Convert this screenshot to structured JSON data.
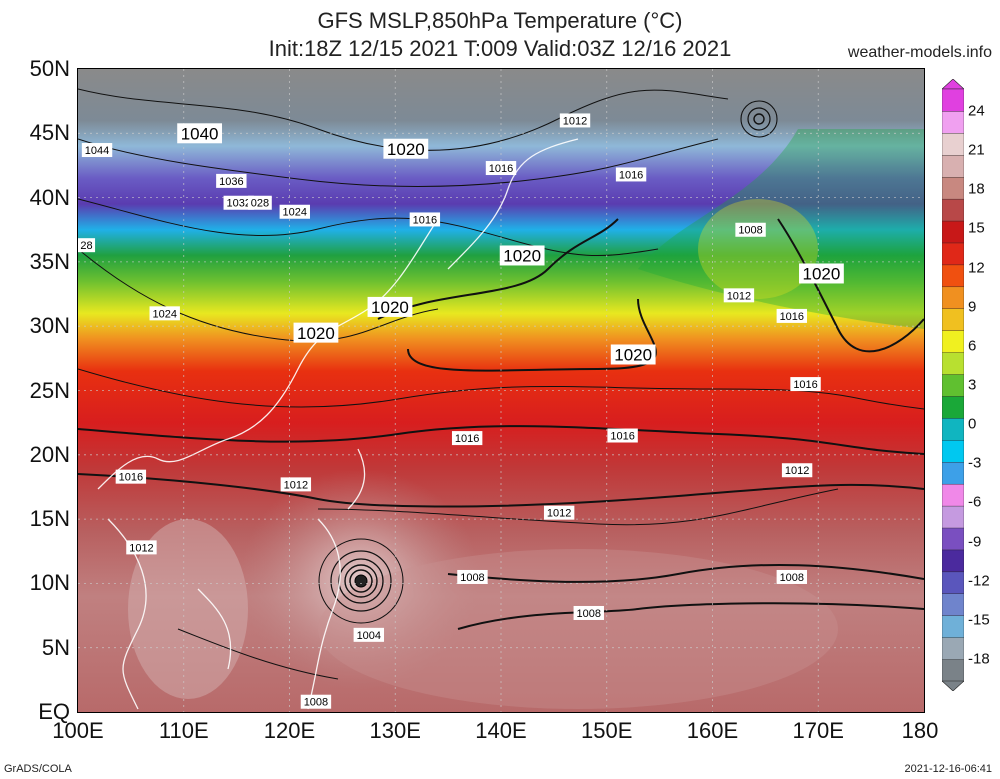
{
  "title": {
    "line1": "GFS MSLP,850hPa Temperature (°C)",
    "line2": "Init:18Z 12/15 2021 T:009 Valid:03Z 12/16 2021",
    "site": "weather-models.info"
  },
  "footer": {
    "left": "GrADS/COLA",
    "right": "2021-12-16-06:41"
  },
  "axes": {
    "lat_labels": [
      "50N",
      "45N",
      "40N",
      "35N",
      "30N",
      "25N",
      "20N",
      "15N",
      "10N",
      "5N",
      "EQ"
    ],
    "lat_values": [
      50,
      45,
      40,
      35,
      30,
      25,
      20,
      15,
      10,
      5,
      0
    ],
    "lon_labels": [
      "100E",
      "110E",
      "120E",
      "130E",
      "140E",
      "150E",
      "160E",
      "170E",
      "180"
    ],
    "lon_values": [
      100,
      110,
      120,
      130,
      140,
      150,
      160,
      170,
      180
    ]
  },
  "colorbar": {
    "labels": [
      "24",
      "21",
      "18",
      "15",
      "12",
      "9",
      "6",
      "3",
      "0",
      "-3",
      "-6",
      "-9",
      "-12",
      "-15",
      "-18"
    ],
    "colors": [
      "#7a8288",
      "#9aa8b4",
      "#6fb0d8",
      "#6f84cc",
      "#5a56bc",
      "#4b2a9e",
      "#7a4fc0",
      "#c59ae0",
      "#f088e8",
      "#3da0e8",
      "#00c8f0",
      "#10b5c0",
      "#1aa838",
      "#60c030",
      "#b8e030",
      "#f0f020",
      "#f0c020",
      "#f09020",
      "#f05010",
      "#e02818",
      "#c81818",
      "#b84848",
      "#c88880",
      "#d8b0b0",
      "#e8d0d0",
      "#f0a0f0",
      "#e040e0"
    ]
  },
  "isobars": [
    {
      "text": "1044",
      "lon": 101.8,
      "lat": 43.7
    },
    {
      "text": "1040",
      "lon": 111.5,
      "lat": 45.0
    },
    {
      "text": "1036",
      "lon": 114.5,
      "lat": 41.3
    },
    {
      "text": "1032",
      "lon": 115.2,
      "lat": 39.6
    },
    {
      "text": "028",
      "lon": 117.2,
      "lat": 39.6
    },
    {
      "text": "1024",
      "lon": 120.5,
      "lat": 38.9
    },
    {
      "text": "1024",
      "lon": 108.2,
      "lat": 31.0
    },
    {
      "text": "28",
      "lon": 100.8,
      "lat": 36.3
    },
    {
      "text": "1020",
      "lon": 131.0,
      "lat": 43.8
    },
    {
      "text": "1012",
      "lon": 147.0,
      "lat": 46.0
    },
    {
      "text": "1016",
      "lon": 140.0,
      "lat": 42.3
    },
    {
      "text": "1016",
      "lon": 152.3,
      "lat": 41.8
    },
    {
      "text": "1016",
      "lon": 132.8,
      "lat": 38.3
    },
    {
      "text": "1020",
      "lon": 142.0,
      "lat": 35.5
    },
    {
      "text": "1008",
      "lon": 163.6,
      "lat": 37.5
    },
    {
      "text": "1020",
      "lon": 170.3,
      "lat": 34.1
    },
    {
      "text": "1012",
      "lon": 162.5,
      "lat": 32.4
    },
    {
      "text": "1016",
      "lon": 167.5,
      "lat": 30.8
    },
    {
      "text": "1020",
      "lon": 129.5,
      "lat": 31.5
    },
    {
      "text": "1020",
      "lon": 122.5,
      "lat": 29.5
    },
    {
      "text": "1020",
      "lon": 152.5,
      "lat": 27.8
    },
    {
      "text": "1016",
      "lon": 168.8,
      "lat": 25.5
    },
    {
      "text": "1016",
      "lon": 136.8,
      "lat": 21.3
    },
    {
      "text": "1016",
      "lon": 151.5,
      "lat": 21.5
    },
    {
      "text": "1012",
      "lon": 168.0,
      "lat": 18.8
    },
    {
      "text": "1016",
      "lon": 105.0,
      "lat": 18.3
    },
    {
      "text": "1012",
      "lon": 120.6,
      "lat": 17.7
    },
    {
      "text": "1012",
      "lon": 145.5,
      "lat": 15.5
    },
    {
      "text": "1012",
      "lon": 106.0,
      "lat": 12.8
    },
    {
      "text": "1008",
      "lon": 137.3,
      "lat": 10.5
    },
    {
      "text": "1008",
      "lon": 167.5,
      "lat": 10.5
    },
    {
      "text": "1008",
      "lon": 148.3,
      "lat": 7.7
    },
    {
      "text": "1004",
      "lon": 127.5,
      "lat": 6.0
    },
    {
      "text": "1008",
      "lon": 122.5,
      "lat": 0.8
    }
  ]
}
